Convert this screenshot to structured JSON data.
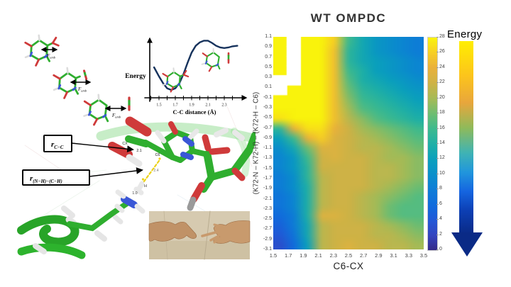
{
  "page": {
    "background": "#ffffff"
  },
  "left_panel": {
    "umbrella": {
      "force_symbol": "F",
      "force_sub": "umb"
    },
    "annotations": {
      "r_symbol": "r",
      "r_cc_sub": "C−C",
      "r_nhch_sub": "(N−H)−(C−H)",
      "atom_cx": "CX",
      "atom_c6": "C6",
      "atom_h": "H",
      "dist_cc": "2.1",
      "dist_ch": "2.4",
      "dist_nh": "1.0"
    }
  },
  "right_panel": {
    "title": "WT OMPDC",
    "xlabel": "C6-CX",
    "ylabel": "(K72-N – K72-H) – (K72-H – C6)",
    "colorbar_label": "Energy"
  },
  "chart_data": [
    {
      "type": "line",
      "title": "",
      "xlabel": "C-C distance (Å)",
      "ylabel": "Energy",
      "x": [
        1.44,
        1.5,
        1.55,
        1.6,
        1.65,
        1.7,
        1.75,
        1.8,
        1.85,
        1.9,
        1.95,
        2.0,
        2.05,
        2.1,
        2.15,
        2.2,
        2.25,
        2.3,
        2.35,
        2.4,
        2.46
      ],
      "y": [
        50,
        34,
        22,
        13,
        10,
        13,
        22,
        38,
        58,
        76,
        88,
        94,
        97,
        97,
        93,
        88,
        85,
        84,
        85,
        87,
        88
      ],
      "xticks": [
        1.5,
        1.7,
        1.9,
        2.1,
        2.3
      ],
      "xlim": [
        1.4,
        2.45
      ],
      "line_color": "#16325c",
      "note": "y axis unlabeled (relative energy, arbitrary units 0-100)"
    },
    {
      "type": "heatmap",
      "title": "WT OMPDC",
      "xlabel": "C6-CX",
      "ylabel": "(K72-N – K72-H) – (K72-H – C6)",
      "x": [
        1.5,
        1.7,
        1.9,
        2.1,
        2.3,
        2.5,
        2.7,
        2.9,
        3.1,
        3.3,
        3.5
      ],
      "y": [
        1.1,
        0.9,
        0.7,
        0.5,
        0.3,
        0.1,
        -0.1,
        -0.3,
        -0.5,
        -0.7,
        -0.9,
        -1.1,
        -1.3,
        -1.5,
        -1.7,
        -1.9,
        -2.1,
        -2.3,
        -2.5,
        -2.7,
        -2.9,
        -3.1
      ],
      "values": [
        [
          28,
          null,
          28,
          28,
          26,
          16,
          13,
          11,
          10,
          9,
          8
        ],
        [
          28,
          null,
          28,
          28,
          25,
          15,
          13,
          11,
          10,
          9,
          8
        ],
        [
          28,
          null,
          28,
          28,
          25,
          15,
          13,
          12,
          11,
          10,
          9
        ],
        [
          28,
          null,
          28,
          28,
          25,
          16,
          14,
          12,
          11,
          10,
          9
        ],
        [
          null,
          null,
          28,
          28,
          25,
          17,
          14,
          13,
          12,
          11,
          10
        ],
        [
          null,
          28,
          28,
          28,
          25,
          18,
          15,
          14,
          13,
          12,
          11
        ],
        [
          28,
          28,
          28,
          28,
          25,
          19,
          16,
          15,
          14,
          13,
          12
        ],
        [
          28,
          28,
          28,
          28,
          25,
          20,
          17,
          16,
          15,
          14,
          13
        ],
        [
          27,
          28,
          28,
          28,
          25,
          21,
          19,
          17,
          16,
          15,
          14
        ],
        [
          15,
          24,
          27,
          27,
          24,
          22,
          20,
          19,
          18,
          17,
          16
        ],
        [
          12,
          16,
          24,
          26,
          23,
          22,
          21,
          20,
          19,
          18,
          17
        ],
        [
          10,
          13,
          18,
          23,
          23,
          22,
          21,
          21,
          20,
          19,
          18
        ],
        [
          9,
          11,
          16,
          22,
          23,
          22,
          22,
          21,
          20,
          20,
          19
        ],
        [
          9,
          11,
          15,
          22,
          22,
          22,
          22,
          21,
          21,
          20,
          19
        ],
        [
          8,
          10,
          15,
          21,
          22,
          22,
          22,
          21,
          21,
          20,
          19
        ],
        [
          8,
          10,
          14,
          21,
          22,
          22,
          22,
          21,
          20,
          19,
          18
        ],
        [
          7,
          9,
          14,
          21,
          22,
          22,
          21,
          20,
          19,
          18,
          17
        ],
        [
          7,
          9,
          14,
          21,
          22,
          22,
          21,
          20,
          18,
          17,
          17
        ],
        [
          6,
          8,
          14,
          23,
          23,
          22,
          21,
          20,
          18,
          17,
          17
        ],
        [
          5,
          8,
          13,
          21,
          22,
          22,
          22,
          21,
          20,
          19,
          18
        ],
        [
          4,
          7,
          13,
          21,
          22,
          22,
          22,
          21,
          21,
          20,
          19
        ],
        [
          3,
          6,
          12,
          21,
          22,
          23,
          22,
          22,
          21,
          21,
          20
        ]
      ],
      "colorbar": {
        "label": "Energy",
        "min": 0,
        "max": 28,
        "ticks": [
          0,
          2,
          4,
          6,
          8,
          10,
          12,
          14,
          16,
          18,
          20,
          22,
          24,
          26,
          28
        ]
      },
      "colormap": "parula-like",
      "colormap_stops": [
        [
          0.0,
          "#352a87"
        ],
        [
          0.07,
          "#3444bf"
        ],
        [
          0.14,
          "#2358d7"
        ],
        [
          0.21,
          "#116bdd"
        ],
        [
          0.29,
          "#0e7ed7"
        ],
        [
          0.36,
          "#0a90cb"
        ],
        [
          0.43,
          "#0ba0bd"
        ],
        [
          0.5,
          "#1fb0a7"
        ],
        [
          0.57,
          "#3cba90"
        ],
        [
          0.64,
          "#6cbd73"
        ],
        [
          0.71,
          "#a3bb58"
        ],
        [
          0.79,
          "#d0b245"
        ],
        [
          0.86,
          "#eab13b"
        ],
        [
          0.93,
          "#f7cf25"
        ],
        [
          1.0,
          "#f9f30c"
        ]
      ],
      "no_data_color": "#ffffff",
      "legend_position": "right"
    }
  ]
}
